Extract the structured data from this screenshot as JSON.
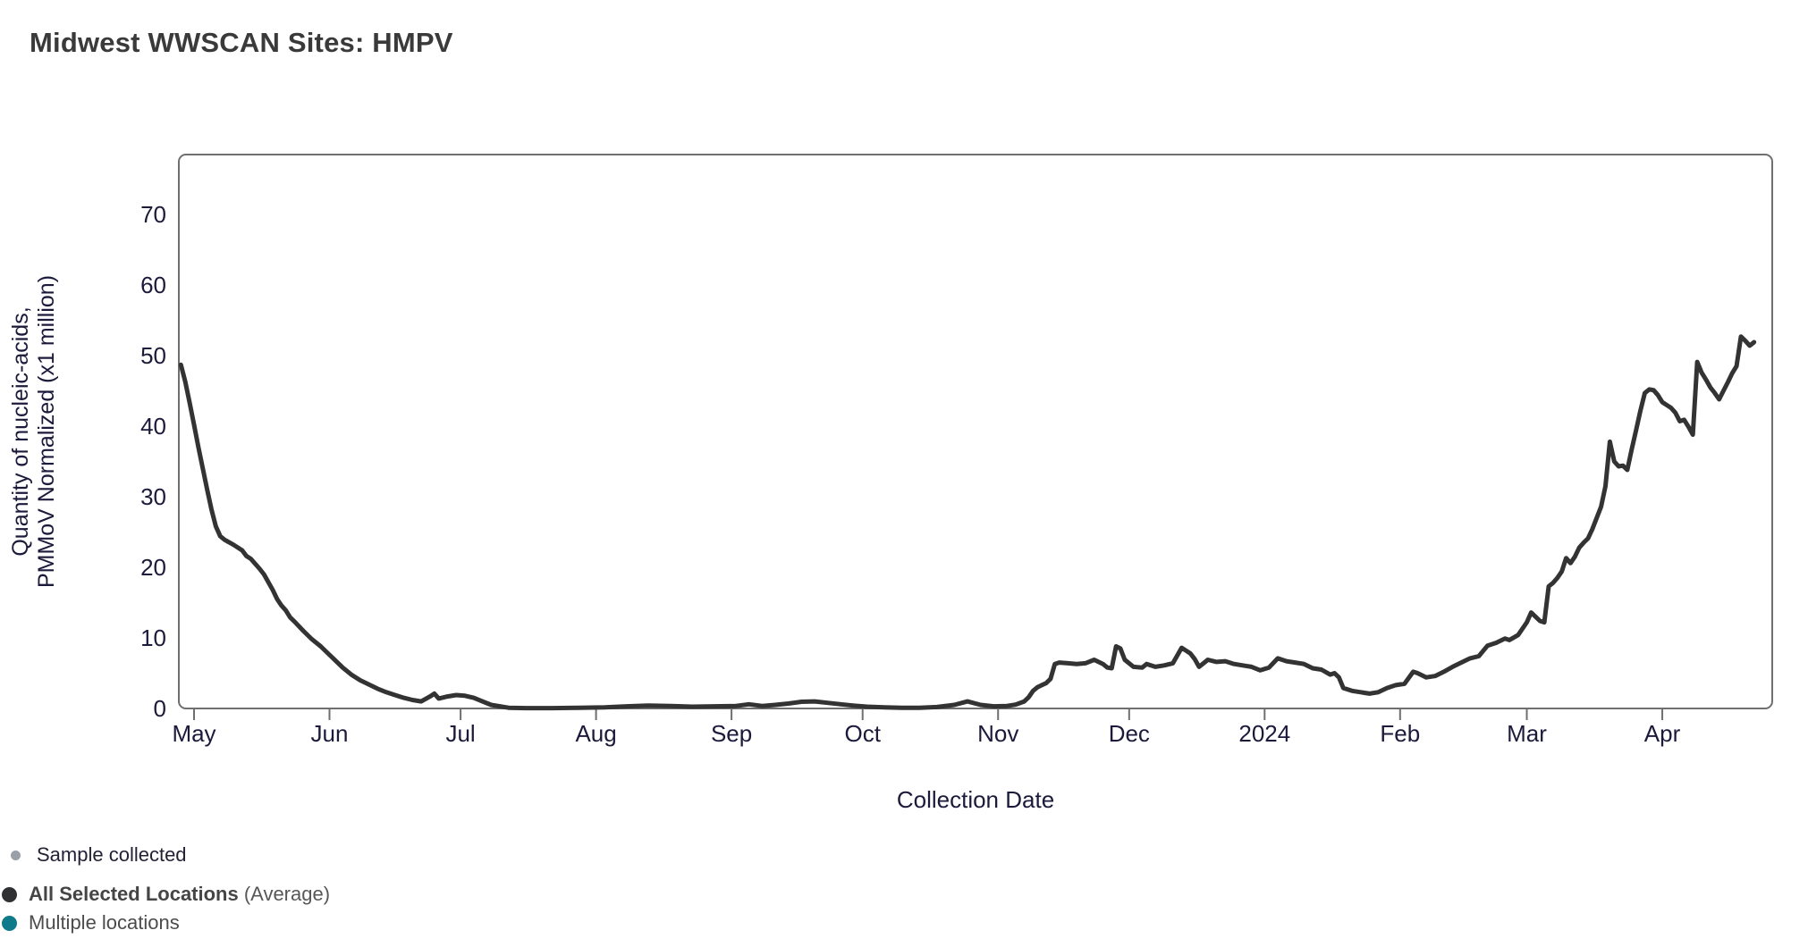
{
  "title": "Midwest WWSCAN Sites: HMPV",
  "chart_data": {
    "type": "line",
    "title": "Midwest WWSCAN Sites: HMPV",
    "xlabel": "Collection Date",
    "ylabel_lines": [
      "Quantity of nucleic-acids,",
      "PMMoV Normalized (x1 million)"
    ],
    "ylim": [
      0,
      78.5
    ],
    "yticks": [
      0,
      10,
      20,
      30,
      40,
      50,
      60,
      70
    ],
    "xticks": [
      {
        "date": "2023-05-01",
        "label": "May"
      },
      {
        "date": "2023-06-01",
        "label": "Jun"
      },
      {
        "date": "2023-07-01",
        "label": "Jul"
      },
      {
        "date": "2023-08-01",
        "label": "Aug"
      },
      {
        "date": "2023-09-01",
        "label": "Sep"
      },
      {
        "date": "2023-10-01",
        "label": "Oct"
      },
      {
        "date": "2023-11-01",
        "label": "Nov"
      },
      {
        "date": "2023-12-01",
        "label": "Dec"
      },
      {
        "date": "2024-01-01",
        "label": "2024"
      },
      {
        "date": "2024-02-01",
        "label": "Feb"
      },
      {
        "date": "2024-03-01",
        "label": "Mar"
      },
      {
        "date": "2024-04-01",
        "label": "Apr"
      }
    ],
    "grid": false,
    "legend_position": "bottom-left",
    "series": [
      {
        "name": "All Selected Locations (Average)",
        "color": "#333333",
        "points": [
          [
            "2023-04-28",
            48.7
          ],
          [
            "2023-04-29",
            46.3
          ],
          [
            "2023-04-30",
            43.3
          ],
          [
            "2023-05-01",
            40.2
          ],
          [
            "2023-05-02",
            37.0
          ],
          [
            "2023-05-03",
            34.0
          ],
          [
            "2023-05-04",
            31.0
          ],
          [
            "2023-05-05",
            28.2
          ],
          [
            "2023-05-06",
            25.8
          ],
          [
            "2023-05-07",
            24.4
          ],
          [
            "2023-05-08",
            23.9
          ],
          [
            "2023-05-10",
            23.2
          ],
          [
            "2023-05-12",
            22.4
          ],
          [
            "2023-05-13",
            21.6
          ],
          [
            "2023-05-14",
            21.2
          ],
          [
            "2023-05-16",
            19.8
          ],
          [
            "2023-05-17",
            19.0
          ],
          [
            "2023-05-19",
            16.8
          ],
          [
            "2023-05-20",
            15.5
          ],
          [
            "2023-05-21",
            14.6
          ],
          [
            "2023-05-22",
            13.9
          ],
          [
            "2023-05-23",
            12.9
          ],
          [
            "2023-05-24",
            12.3
          ],
          [
            "2023-05-26",
            11.0
          ],
          [
            "2023-05-28",
            9.8
          ],
          [
            "2023-05-30",
            8.8
          ],
          [
            "2023-06-01",
            7.6
          ],
          [
            "2023-06-02",
            7.0
          ],
          [
            "2023-06-03",
            6.4
          ],
          [
            "2023-06-04",
            5.8
          ],
          [
            "2023-06-06",
            4.8
          ],
          [
            "2023-06-08",
            4.0
          ],
          [
            "2023-06-10",
            3.4
          ],
          [
            "2023-06-12",
            2.8
          ],
          [
            "2023-06-14",
            2.3
          ],
          [
            "2023-06-16",
            1.9
          ],
          [
            "2023-06-18",
            1.5
          ],
          [
            "2023-06-20",
            1.2
          ],
          [
            "2023-06-22",
            1.0
          ],
          [
            "2023-06-24",
            1.7
          ],
          [
            "2023-06-25",
            2.1
          ],
          [
            "2023-06-26",
            1.4
          ],
          [
            "2023-06-28",
            1.7
          ],
          [
            "2023-06-30",
            1.9
          ],
          [
            "2023-07-02",
            1.8
          ],
          [
            "2023-07-04",
            1.5
          ],
          [
            "2023-07-06",
            1.0
          ],
          [
            "2023-07-08",
            0.5
          ],
          [
            "2023-07-10",
            0.3
          ],
          [
            "2023-07-12",
            0.1
          ],
          [
            "2023-07-16",
            0.05
          ],
          [
            "2023-07-22",
            0.05
          ],
          [
            "2023-07-28",
            0.1
          ],
          [
            "2023-08-03",
            0.15
          ],
          [
            "2023-08-08",
            0.3
          ],
          [
            "2023-08-13",
            0.4
          ],
          [
            "2023-08-18",
            0.35
          ],
          [
            "2023-08-23",
            0.25
          ],
          [
            "2023-08-28",
            0.3
          ],
          [
            "2023-09-02",
            0.35
          ],
          [
            "2023-09-05",
            0.6
          ],
          [
            "2023-09-08",
            0.35
          ],
          [
            "2023-09-11",
            0.5
          ],
          [
            "2023-09-14",
            0.7
          ],
          [
            "2023-09-17",
            0.95
          ],
          [
            "2023-09-20",
            1.0
          ],
          [
            "2023-09-23",
            0.8
          ],
          [
            "2023-09-26",
            0.6
          ],
          [
            "2023-09-29",
            0.4
          ],
          [
            "2023-10-02",
            0.25
          ],
          [
            "2023-10-06",
            0.15
          ],
          [
            "2023-10-10",
            0.1
          ],
          [
            "2023-10-14",
            0.1
          ],
          [
            "2023-10-18",
            0.2
          ],
          [
            "2023-10-22",
            0.5
          ],
          [
            "2023-10-25",
            1.0
          ],
          [
            "2023-10-28",
            0.5
          ],
          [
            "2023-10-31",
            0.3
          ],
          [
            "2023-11-03",
            0.35
          ],
          [
            "2023-11-05",
            0.55
          ],
          [
            "2023-11-07",
            1.0
          ],
          [
            "2023-11-08",
            1.6
          ],
          [
            "2023-11-09",
            2.5
          ],
          [
            "2023-11-10",
            3.0
          ],
          [
            "2023-11-11",
            3.3
          ],
          [
            "2023-11-12",
            3.6
          ],
          [
            "2023-11-13",
            4.2
          ],
          [
            "2023-11-14",
            6.3
          ],
          [
            "2023-11-15",
            6.5
          ],
          [
            "2023-11-17",
            6.4
          ],
          [
            "2023-11-19",
            6.3
          ],
          [
            "2023-11-21",
            6.4
          ],
          [
            "2023-11-23",
            6.9
          ],
          [
            "2023-11-25",
            6.3
          ],
          [
            "2023-11-26",
            5.8
          ],
          [
            "2023-11-27",
            5.7
          ],
          [
            "2023-11-28",
            8.8
          ],
          [
            "2023-11-29",
            8.5
          ],
          [
            "2023-11-30",
            6.9
          ],
          [
            "2023-12-02",
            5.9
          ],
          [
            "2023-12-04",
            5.8
          ],
          [
            "2023-12-05",
            6.3
          ],
          [
            "2023-12-07",
            5.9
          ],
          [
            "2023-12-09",
            6.1
          ],
          [
            "2023-12-11",
            6.4
          ],
          [
            "2023-12-12",
            7.5
          ],
          [
            "2023-12-13",
            8.6
          ],
          [
            "2023-12-14",
            8.2
          ],
          [
            "2023-12-15",
            7.8
          ],
          [
            "2023-12-16",
            7.0
          ],
          [
            "2023-12-17",
            5.9
          ],
          [
            "2023-12-19",
            6.9
          ],
          [
            "2023-12-21",
            6.6
          ],
          [
            "2023-12-23",
            6.7
          ],
          [
            "2023-12-25",
            6.3
          ],
          [
            "2023-12-27",
            6.1
          ],
          [
            "2023-12-29",
            5.9
          ],
          [
            "2023-12-31",
            5.4
          ],
          [
            "2024-01-02",
            5.8
          ],
          [
            "2024-01-04",
            7.1
          ],
          [
            "2024-01-06",
            6.7
          ],
          [
            "2024-01-08",
            6.5
          ],
          [
            "2024-01-10",
            6.3
          ],
          [
            "2024-01-12",
            5.7
          ],
          [
            "2024-01-14",
            5.5
          ],
          [
            "2024-01-16",
            4.8
          ],
          [
            "2024-01-17",
            5.0
          ],
          [
            "2024-01-18",
            4.4
          ],
          [
            "2024-01-19",
            2.9
          ],
          [
            "2024-01-21",
            2.5
          ],
          [
            "2024-01-23",
            2.3
          ],
          [
            "2024-01-25",
            2.1
          ],
          [
            "2024-01-27",
            2.3
          ],
          [
            "2024-01-29",
            2.9
          ],
          [
            "2024-01-31",
            3.3
          ],
          [
            "2024-02-02",
            3.5
          ],
          [
            "2024-02-04",
            5.2
          ],
          [
            "2024-02-05",
            5.0
          ],
          [
            "2024-02-07",
            4.4
          ],
          [
            "2024-02-09",
            4.6
          ],
          [
            "2024-02-11",
            5.2
          ],
          [
            "2024-02-13",
            5.9
          ],
          [
            "2024-02-15",
            6.5
          ],
          [
            "2024-02-17",
            7.1
          ],
          [
            "2024-02-19",
            7.4
          ],
          [
            "2024-02-21",
            8.9
          ],
          [
            "2024-02-23",
            9.3
          ],
          [
            "2024-02-25",
            9.9
          ],
          [
            "2024-02-26",
            9.7
          ],
          [
            "2024-02-28",
            10.4
          ],
          [
            "2024-03-01",
            12.2
          ],
          [
            "2024-03-02",
            13.6
          ],
          [
            "2024-03-03",
            13.0
          ],
          [
            "2024-03-04",
            12.4
          ],
          [
            "2024-03-05",
            12.2
          ],
          [
            "2024-03-06",
            17.3
          ],
          [
            "2024-03-07",
            17.8
          ],
          [
            "2024-03-08",
            18.5
          ],
          [
            "2024-03-09",
            19.4
          ],
          [
            "2024-03-10",
            21.3
          ],
          [
            "2024-03-11",
            20.6
          ],
          [
            "2024-03-12",
            21.5
          ],
          [
            "2024-03-13",
            22.8
          ],
          [
            "2024-03-14",
            23.5
          ],
          [
            "2024-03-15",
            24.1
          ],
          [
            "2024-03-16",
            25.4
          ],
          [
            "2024-03-17",
            27.0
          ],
          [
            "2024-03-18",
            28.6
          ],
          [
            "2024-03-19",
            31.5
          ],
          [
            "2024-03-20",
            37.8
          ],
          [
            "2024-03-21",
            35.0
          ],
          [
            "2024-03-22",
            34.3
          ],
          [
            "2024-03-23",
            34.4
          ],
          [
            "2024-03-24",
            33.8
          ],
          [
            "2024-03-25",
            36.7
          ],
          [
            "2024-03-26",
            39.4
          ],
          [
            "2024-03-27",
            42.2
          ],
          [
            "2024-03-28",
            44.7
          ],
          [
            "2024-03-29",
            45.2
          ],
          [
            "2024-03-30",
            45.1
          ],
          [
            "2024-03-31",
            44.4
          ],
          [
            "2024-04-01",
            43.4
          ],
          [
            "2024-04-02",
            43.0
          ],
          [
            "2024-04-03",
            42.6
          ],
          [
            "2024-04-04",
            41.9
          ],
          [
            "2024-04-05",
            40.7
          ],
          [
            "2024-04-06",
            40.9
          ],
          [
            "2024-04-07",
            39.9
          ],
          [
            "2024-04-08",
            38.8
          ],
          [
            "2024-04-09",
            49.1
          ],
          [
            "2024-04-10",
            47.6
          ],
          [
            "2024-04-11",
            46.6
          ],
          [
            "2024-04-12",
            45.5
          ],
          [
            "2024-04-13",
            44.7
          ],
          [
            "2024-04-14",
            43.8
          ],
          [
            "2024-04-15",
            45.0
          ],
          [
            "2024-04-16",
            46.2
          ],
          [
            "2024-04-17",
            47.5
          ],
          [
            "2024-04-18",
            48.5
          ],
          [
            "2024-04-19",
            52.7
          ],
          [
            "2024-04-20",
            52.1
          ],
          [
            "2024-04-21",
            51.4
          ],
          [
            "2024-04-22",
            51.9
          ]
        ]
      }
    ]
  },
  "legend": {
    "items": [
      {
        "label": "Sample collected",
        "marker_color": "#9aa0a8",
        "marker_size": "small"
      },
      {
        "label": "All Selected Locations",
        "sublabel": " (Average)",
        "marker_color": "#2f3133",
        "marker_size": "large"
      },
      {
        "label": "Multiple locations",
        "sublabel": "",
        "marker_color": "#0e7a8a",
        "marker_size": "large"
      }
    ]
  },
  "colors": {
    "line": "#333333",
    "frame": "#6f6f6f",
    "tick_text": "#1c1a3a",
    "title_text": "#3a3a3a",
    "background": "#ffffff"
  }
}
